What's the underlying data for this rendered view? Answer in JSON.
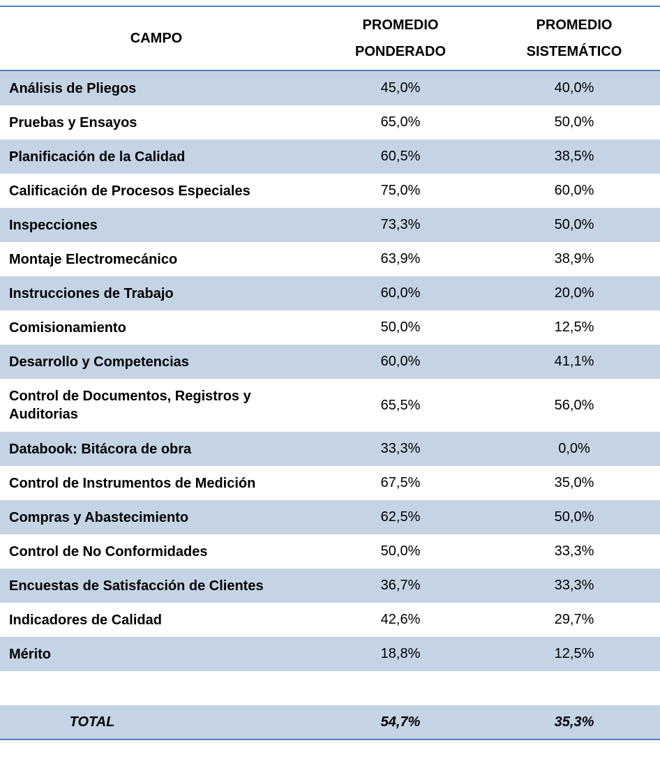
{
  "header": {
    "campo": "CAMPO",
    "col1_line1": "PROMEDIO",
    "col1_line2": "PONDERADO",
    "col2_line1": "PROMEDIO",
    "col2_line2": "SISTEMÁTICO"
  },
  "rows": [
    {
      "campo": "Análisis de Pliegos",
      "ponderado": "45,0%",
      "sistematico": "40,0%"
    },
    {
      "campo": "Pruebas y Ensayos",
      "ponderado": "65,0%",
      "sistematico": "50,0%"
    },
    {
      "campo": "Planificación de la Calidad",
      "ponderado": "60,5%",
      "sistematico": "38,5%"
    },
    {
      "campo": "Calificación de Procesos Especiales",
      "ponderado": "75,0%",
      "sistematico": "60,0%"
    },
    {
      "campo": "Inspecciones",
      "ponderado": "73,3%",
      "sistematico": "50,0%"
    },
    {
      "campo": "Montaje Electromecánico",
      "ponderado": "63,9%",
      "sistematico": "38,9%"
    },
    {
      "campo": "Instrucciones de Trabajo",
      "ponderado": "60,0%",
      "sistematico": "20,0%"
    },
    {
      "campo": "Comisionamiento",
      "ponderado": "50,0%",
      "sistematico": "12,5%"
    },
    {
      "campo": "Desarrollo y Competencias",
      "ponderado": "60,0%",
      "sistematico": "41,1%"
    },
    {
      "campo": "Control de Documentos, Registros y Auditorias",
      "ponderado": "65,5%",
      "sistematico": "56,0%"
    },
    {
      "campo": "Databook: Bitácora de obra",
      "ponderado": "33,3%",
      "sistematico": "0,0%"
    },
    {
      "campo": "Control de Instrumentos de Medición",
      "ponderado": "67,5%",
      "sistematico": "35,0%"
    },
    {
      "campo": "Compras y Abastecimiento",
      "ponderado": "62,5%",
      "sistematico": "50,0%"
    },
    {
      "campo": "Control de No Conformidades",
      "ponderado": "50,0%",
      "sistematico": "33,3%"
    },
    {
      "campo": "Encuestas de Satisfacción de Clientes",
      "ponderado": "36,7%",
      "sistematico": "33,3%"
    },
    {
      "campo": "Indicadores de Calidad",
      "ponderado": "42,6%",
      "sistematico": "29,7%"
    },
    {
      "campo": "Mérito",
      "ponderado": "18,8%",
      "sistematico": "12,5%"
    }
  ],
  "total": {
    "label": "TOTAL",
    "ponderado": "54,7%",
    "sistematico": "35,3%"
  }
}
